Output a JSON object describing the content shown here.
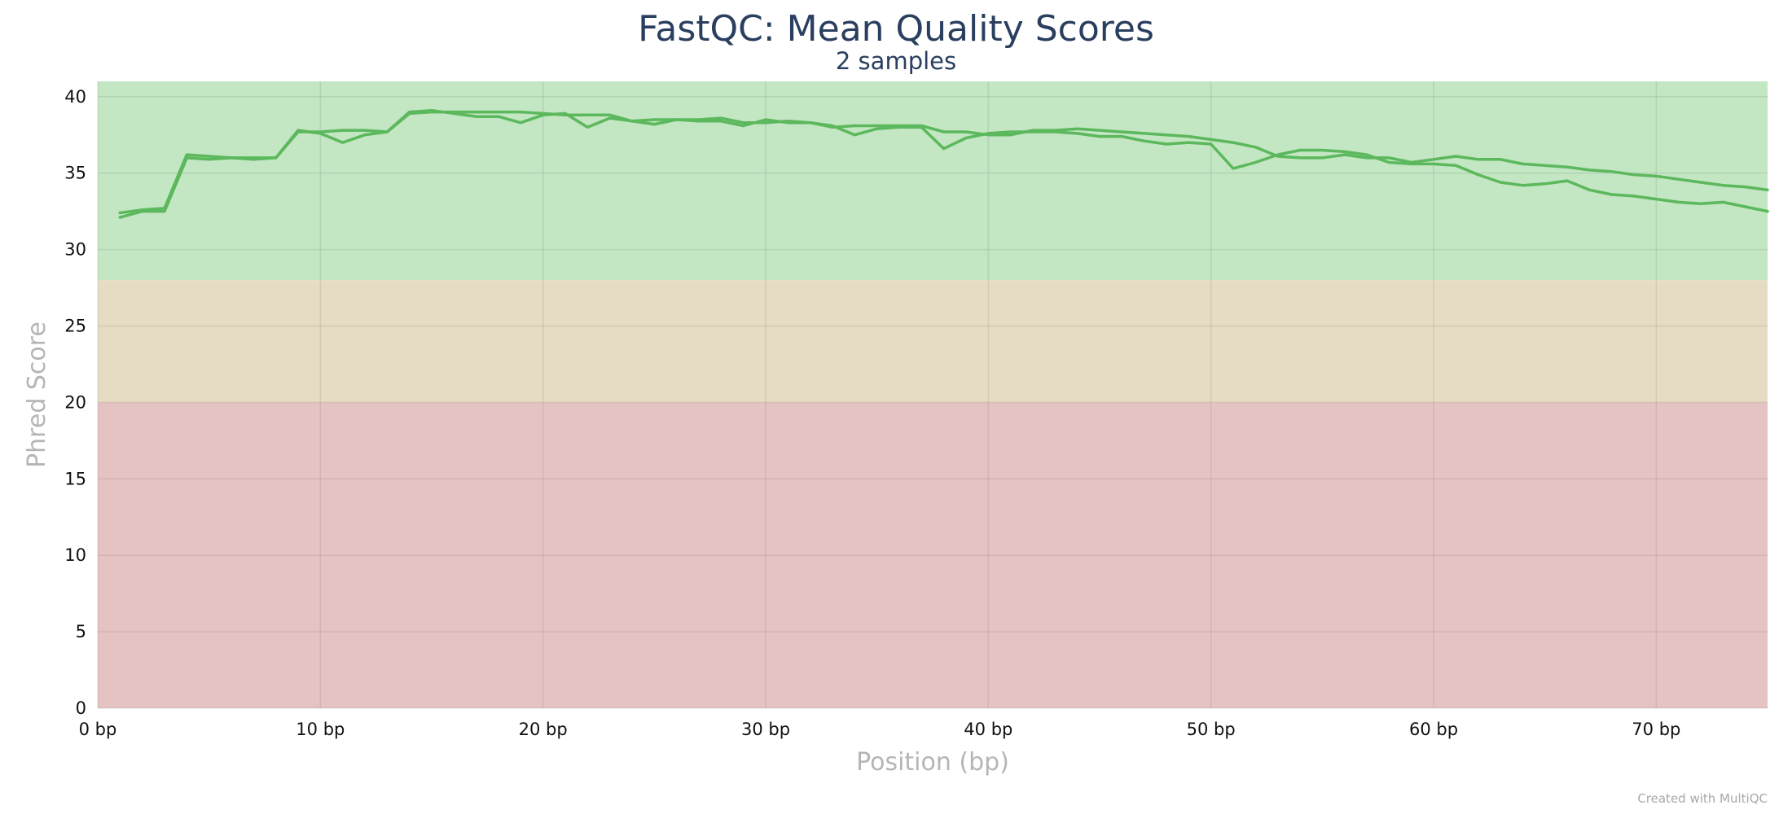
{
  "chart_data": {
    "type": "line",
    "title": "FastQC: Mean Quality Scores",
    "subtitle": "2 samples",
    "xlabel": "Position (bp)",
    "ylabel": "Phred Score",
    "xlim": [
      0,
      75
    ],
    "ylim": [
      0,
      41
    ],
    "x_ticks": [
      0,
      10,
      20,
      30,
      40,
      50,
      60,
      70
    ],
    "x_tick_labels": [
      "0 bp",
      "10 bp",
      "20 bp",
      "30 bp",
      "40 bp",
      "50 bp",
      "60 bp",
      "70 bp"
    ],
    "y_ticks": [
      0,
      5,
      10,
      15,
      20,
      25,
      30,
      35,
      40
    ],
    "y_tick_labels": [
      "0",
      "5",
      "10",
      "15",
      "20",
      "25",
      "30",
      "35",
      "40"
    ],
    "grid": true,
    "bands": [
      {
        "from": 28,
        "to": 41,
        "color": "#c3e6c3"
      },
      {
        "from": 20,
        "to": 28,
        "color": "#e6dcc3"
      },
      {
        "from": 0,
        "to": 20,
        "color": "#e6c3c3"
      }
    ],
    "line_color": "#5cb85c",
    "series": [
      {
        "x": [
          1,
          2,
          3,
          4,
          5,
          6,
          7,
          8,
          9,
          10,
          11,
          12,
          13,
          14,
          15,
          16,
          17,
          18,
          19,
          20,
          21,
          22,
          23,
          24,
          25,
          26,
          27,
          28,
          29,
          30,
          31,
          32,
          33,
          34,
          35,
          36,
          37,
          38,
          39,
          40,
          41,
          42,
          43,
          44,
          45,
          46,
          47,
          48,
          49,
          50,
          51,
          52,
          53,
          54,
          55,
          56,
          57,
          58,
          59,
          60,
          61,
          62,
          63,
          64,
          65,
          66,
          67,
          68,
          69,
          70,
          71,
          72,
          73,
          74,
          75
        ],
        "values": [
          32.4,
          32.6,
          32.7,
          36.2,
          36.1,
          36.0,
          35.9,
          36.0,
          37.8,
          37.6,
          37.0,
          37.5,
          37.7,
          39.0,
          39.1,
          38.9,
          38.7,
          38.7,
          38.3,
          38.8,
          38.9,
          38.0,
          38.6,
          38.4,
          38.2,
          38.5,
          38.4,
          38.4,
          38.1,
          38.5,
          38.3,
          38.3,
          38.1,
          37.5,
          37.9,
          38.0,
          38.0,
          36.6,
          37.3,
          37.6,
          37.7,
          37.7,
          37.7,
          37.6,
          37.4,
          37.4,
          37.1,
          36.9,
          37.0,
          36.9,
          35.3,
          35.7,
          36.2,
          36.5,
          36.5,
          36.4,
          36.2,
          35.7,
          35.6,
          35.6,
          35.5,
          34.9,
          34.4,
          34.2,
          34.3,
          34.5,
          33.9,
          33.6,
          33.5,
          33.3,
          33.1,
          33.0,
          33.1,
          32.8,
          32.5
        ]
      },
      {
        "x": [
          1,
          2,
          3,
          4,
          5,
          6,
          7,
          8,
          9,
          10,
          11,
          12,
          13,
          14,
          15,
          16,
          17,
          18,
          19,
          20,
          21,
          22,
          23,
          24,
          25,
          26,
          27,
          28,
          29,
          30,
          31,
          32,
          33,
          34,
          35,
          36,
          37,
          38,
          39,
          40,
          41,
          42,
          43,
          44,
          45,
          46,
          47,
          48,
          49,
          50,
          51,
          52,
          53,
          54,
          55,
          56,
          57,
          58,
          59,
          60,
          61,
          62,
          63,
          64,
          65,
          66,
          67,
          68,
          69,
          70,
          71,
          72,
          73,
          74,
          75
        ],
        "values": [
          32.1,
          32.5,
          32.5,
          36.0,
          35.9,
          36.0,
          36.0,
          36.0,
          37.7,
          37.7,
          37.8,
          37.8,
          37.7,
          38.9,
          39.0,
          39.0,
          39.0,
          39.0,
          39.0,
          38.9,
          38.8,
          38.8,
          38.8,
          38.4,
          38.5,
          38.5,
          38.5,
          38.6,
          38.3,
          38.3,
          38.4,
          38.3,
          38.0,
          38.1,
          38.1,
          38.1,
          38.1,
          37.7,
          37.7,
          37.5,
          37.5,
          37.8,
          37.8,
          37.9,
          37.8,
          37.7,
          37.6,
          37.5,
          37.4,
          37.2,
          37.0,
          36.7,
          36.1,
          36.0,
          36.0,
          36.2,
          36.0,
          36.0,
          35.7,
          35.9,
          36.1,
          35.9,
          35.9,
          35.6,
          35.5,
          35.4,
          35.2,
          35.1,
          34.9,
          34.8,
          34.6,
          34.4,
          34.2,
          34.1,
          33.9
        ]
      }
    ]
  },
  "credit": "Created with MultiQC"
}
